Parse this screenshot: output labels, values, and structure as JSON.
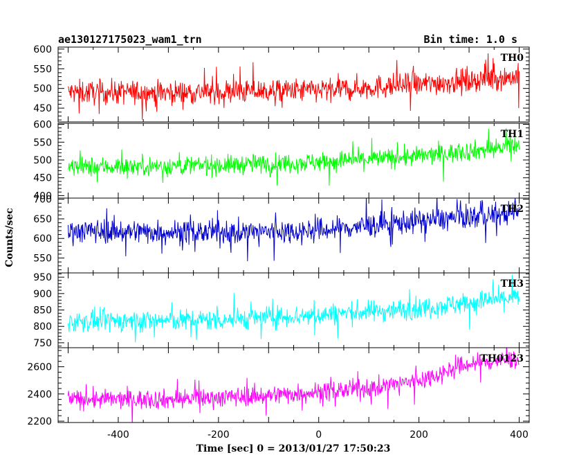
{
  "header": {
    "title": "ae130127175023_wam1_trn",
    "bin_time": "Bin time: 1.0 s"
  },
  "chart_data": {
    "type": "line",
    "xlabel": "Time [sec] 0 = 2013/01/27 17:50:23",
    "ylabel": "Counts/sec",
    "xlim": [
      -520,
      420
    ],
    "x_ticks": [
      -400,
      -200,
      0,
      200,
      400
    ],
    "x_range": [
      -500,
      400
    ],
    "grid": false,
    "panels": [
      {
        "name": "TH0",
        "color": "#ff0000",
        "ylim": [
          415,
          605
        ],
        "y_ticks": [
          450,
          500,
          550,
          600
        ],
        "trend": [
          [
            -500,
            490
          ],
          [
            -300,
            490
          ],
          [
            0,
            495
          ],
          [
            200,
            510
          ],
          [
            400,
            530
          ]
        ],
        "noise": 28
      },
      {
        "name": "TH1",
        "color": "#00ff00",
        "ylim": [
          393,
          603
        ],
        "y_ticks": [
          400,
          450,
          500,
          550,
          600
        ],
        "trend": [
          [
            -500,
            480
          ],
          [
            -200,
            485
          ],
          [
            0,
            495
          ],
          [
            200,
            510
          ],
          [
            400,
            540
          ]
        ],
        "noise": 25
      },
      {
        "name": "TH2",
        "color": "#0000cc",
        "ylim": [
          512,
          703
        ],
        "y_ticks": [
          550,
          600,
          650,
          700
        ],
        "trend": [
          [
            -500,
            620
          ],
          [
            -200,
            615
          ],
          [
            0,
            620
          ],
          [
            200,
            645
          ],
          [
            400,
            665
          ]
        ],
        "noise": 28
      },
      {
        "name": "TH3",
        "color": "#00ffff",
        "ylim": [
          735,
          963
        ],
        "y_ticks": [
          750,
          800,
          850,
          900,
          950
        ],
        "trend": [
          [
            -500,
            815
          ],
          [
            -200,
            820
          ],
          [
            0,
            835
          ],
          [
            200,
            855
          ],
          [
            400,
            890
          ]
        ],
        "noise": 30
      },
      {
        "name": "TH0123",
        "color": "#ff00ff",
        "ylim": [
          2190,
          2740
        ],
        "y_ticks": [
          2200,
          2400,
          2600
        ],
        "trend": [
          [
            -500,
            2360
          ],
          [
            -300,
            2360
          ],
          [
            -100,
            2390
          ],
          [
            100,
            2440
          ],
          [
            200,
            2500
          ],
          [
            300,
            2620
          ],
          [
            400,
            2660
          ]
        ],
        "noise": 65
      }
    ]
  }
}
